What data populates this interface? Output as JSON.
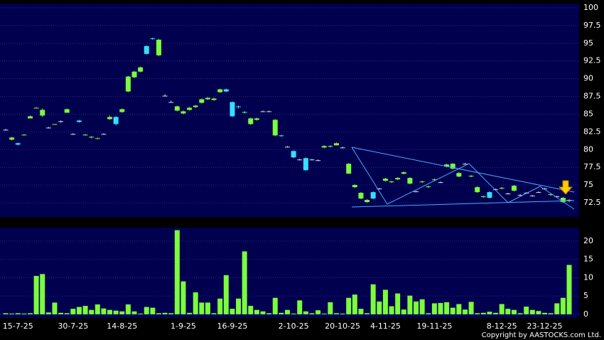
{
  "chart_data": [
    {
      "type": "candlestick",
      "open": [
        82.8,
        81.4,
        80.9,
        82.0,
        84.4,
        85.8,
        84.8,
        83.1,
        83.5,
        84.0,
        85.2,
        82.2,
        84.1,
        82.0,
        81.7,
        81.5,
        82.2,
        84.3,
        84.6,
        85.3,
        88.2,
        90.2,
        91.0,
        94.6,
        95.7,
        93.3,
        87.6,
        86.7,
        85.5,
        85.1,
        85.6,
        86.0,
        86.6,
        87.1,
        87.0,
        88.1,
        88.5,
        86.7,
        86.1,
        85.2,
        83.6,
        84.2,
        85.4,
        85.4,
        82.0,
        82.0,
        80.4,
        79.8,
        78.6,
        78.8,
        78.6,
        78.5,
        80.3,
        80.4,
        80.6,
        80.3,
        76.6,
        74.7,
        73.1,
        72.6,
        74.0,
        74.5,
        75.6,
        75.4,
        75.8,
        76.6,
        75.2,
        74.1,
        75.4,
        74.7,
        75.7,
        75.4,
        77.6,
        77.3,
        76.2,
        78.0,
        76.2,
        74.0,
        73.3,
        74.0,
        74.4,
        74.5,
        73.8,
        74.2,
        73.6,
        73.9,
        73.5,
        74.0,
        74.5,
        73.6,
        73.4,
        72.6,
        72.8
      ],
      "high": [
        82.9,
        81.8,
        81.0,
        82.2,
        84.8,
        86.0,
        85.8,
        83.2,
        83.6,
        84.1,
        85.8,
        82.3,
        84.2,
        82.2,
        81.9,
        81.7,
        82.3,
        84.8,
        84.7,
        85.8,
        90.4,
        91.1,
        91.7,
        94.7,
        95.8,
        95.6,
        87.8,
        86.9,
        86.2,
        85.5,
        86.0,
        86.3,
        87.2,
        87.4,
        87.3,
        88.6,
        88.6,
        86.8,
        86.2,
        85.4,
        84.5,
        84.5,
        85.5,
        85.5,
        84.3,
        82.1,
        80.5,
        79.9,
        78.7,
        78.9,
        78.7,
        78.6,
        80.6,
        80.6,
        81.0,
        80.4,
        78.1,
        75.1,
        74.0,
        73.0,
        74.1,
        74.6,
        76.0,
        75.6,
        76.1,
        76.9,
        76.1,
        74.2,
        75.6,
        74.9,
        75.9,
        75.5,
        78.0,
        78.1,
        76.8,
        78.1,
        76.4,
        74.8,
        73.5,
        74.1,
        74.5,
        74.7,
        73.9,
        75.0,
        73.7,
        74.0,
        73.6,
        74.1,
        74.6,
        73.8,
        73.5,
        73.3,
        73.0
      ],
      "low": [
        82.7,
        81.3,
        80.6,
        82.0,
        84.4,
        85.8,
        84.6,
        83.0,
        83.5,
        83.8,
        85.2,
        82.1,
        83.8,
        82.0,
        81.6,
        81.5,
        82.2,
        84.2,
        83.4,
        85.2,
        88.1,
        90.1,
        90.9,
        93.4,
        95.5,
        93.2,
        87.5,
        86.6,
        85.4,
        85.0,
        85.5,
        85.9,
        86.5,
        87.0,
        86.9,
        88.0,
        88.1,
        84.6,
        85.8,
        85.1,
        83.5,
        84.1,
        85.3,
        85.4,
        81.9,
        81.8,
        80.3,
        78.8,
        78.5,
        77.0,
        78.5,
        78.4,
        80.2,
        80.3,
        80.6,
        80.2,
        76.6,
        74.6,
        73.0,
        72.5,
        73.0,
        74.4,
        75.5,
        75.3,
        75.7,
        76.5,
        75.1,
        74.0,
        75.3,
        74.6,
        75.6,
        75.3,
        77.5,
        77.2,
        76.1,
        77.9,
        76.1,
        73.9,
        73.2,
        73.1,
        74.3,
        74.4,
        73.7,
        74.1,
        73.5,
        73.8,
        73.4,
        73.9,
        74.4,
        73.5,
        73.3,
        72.5,
        72.6
      ],
      "close": [
        82.8,
        81.7,
        80.7,
        82.1,
        84.7,
        85.9,
        85.6,
        83.1,
        83.6,
        84.0,
        85.7,
        82.2,
        83.9,
        82.1,
        81.8,
        81.6,
        82.2,
        84.6,
        83.6,
        85.7,
        90.3,
        91.0,
        91.6,
        93.5,
        95.6,
        95.5,
        87.6,
        86.7,
        86.1,
        85.4,
        85.9,
        86.2,
        87.1,
        87.3,
        87.2,
        88.5,
        88.2,
        84.7,
        86.0,
        85.3,
        84.4,
        84.4,
        85.4,
        85.4,
        84.2,
        81.9,
        80.4,
        78.9,
        78.6,
        77.1,
        78.6,
        78.5,
        80.5,
        80.5,
        80.9,
        80.3,
        78.0,
        75.0,
        73.9,
        72.9,
        73.1,
        74.5,
        75.9,
        75.5,
        76.0,
        76.8,
        76.0,
        74.1,
        75.5,
        74.8,
        75.8,
        75.4,
        77.9,
        78.0,
        76.7,
        78.0,
        76.3,
        74.7,
        73.4,
        73.2,
        74.4,
        74.6,
        73.8,
        74.9,
        73.6,
        73.9,
        73.5,
        74.0,
        74.5,
        73.7,
        73.4,
        73.2,
        72.9
      ],
      "up_color": "#7cfc3c",
      "down_color": "#33e0ff",
      "ylim": [
        70.5,
        100.6
      ],
      "yticks": [
        72.5,
        75,
        77.5,
        80,
        82.5,
        85,
        87.5,
        90,
        92.5,
        95,
        97.5,
        100
      ],
      "grid": true
    },
    {
      "type": "bar",
      "color": "#7cfc3c",
      "categories": [
        null,
        null,
        "15-7-25",
        null,
        null,
        null,
        null,
        null,
        null,
        null,
        null,
        "30-7-25",
        null,
        null,
        null,
        null,
        null,
        null,
        null,
        "14-8-25",
        null,
        null,
        null,
        null,
        null,
        null,
        null,
        null,
        null,
        "1-9-25",
        null,
        null,
        null,
        null,
        null,
        null,
        null,
        "16-9-25",
        null,
        null,
        null,
        null,
        null,
        null,
        null,
        null,
        null,
        "2-10-25",
        null,
        null,
        null,
        null,
        null,
        null,
        null,
        "20-10-25",
        null,
        null,
        null,
        null,
        null,
        null,
        "4-11-25",
        null,
        null,
        null,
        null,
        null,
        null,
        null,
        "19-11-25",
        null,
        null,
        null,
        null,
        null,
        null,
        null,
        null,
        null,
        null,
        "8-12-25",
        null,
        null,
        null,
        null,
        null,
        null,
        "23-12-25",
        null,
        null,
        null,
        null
      ],
      "values": [
        0.3,
        0.2,
        0.3,
        0.2,
        0.3,
        10.5,
        11,
        0.5,
        3.2,
        0.4,
        0.3,
        1.5,
        2.0,
        2.3,
        1.2,
        2.7,
        1.6,
        1.2,
        1,
        0.8,
        2.7,
        0.8,
        0.2,
        2,
        1.8,
        0.3,
        0.4,
        0.3,
        23,
        9,
        0.4,
        6,
        3.2,
        3.2,
        0.3,
        4.3,
        10.7,
        1.5,
        4.3,
        17.2,
        2.3,
        1.2,
        0.8,
        0.3,
        4.5,
        0.4,
        1.2,
        0.2,
        3.8,
        0.8,
        0.3,
        1.1,
        0.2,
        3.3,
        0.3,
        0.2,
        4.5,
        5.4,
        1.5,
        0.3,
        8.2,
        3.5,
        6.7,
        2.2,
        5.7,
        1.3,
        5.1,
        3.5,
        4.1,
        0.3,
        3,
        3.1,
        3.3,
        1.8,
        2.8,
        1.3,
        3.4,
        0.3,
        0.4,
        0.7,
        0.4,
        2.8,
        1.5,
        1.2,
        0.3,
        2.1,
        1.2,
        0.9,
        0.4,
        0.3,
        3,
        4.5,
        13.5
      ],
      "ylim": [
        -1,
        23.7
      ],
      "yticks": [
        0,
        5,
        10,
        15,
        20
      ],
      "grid": true
    }
  ],
  "copyright": "Copyright by AASTOCKS.com Ltd."
}
